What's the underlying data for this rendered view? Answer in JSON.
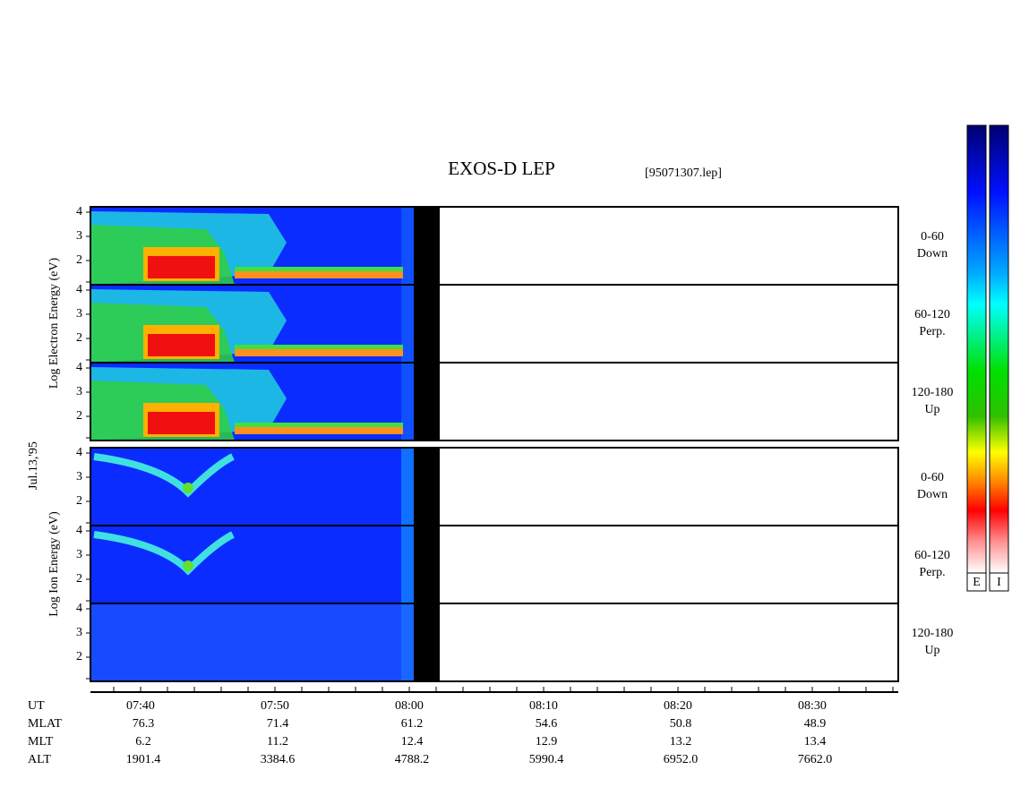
{
  "header": {
    "title": "EXOS-D LEP",
    "file": "[95071307.lep]",
    "date": "Jul.13,'95"
  },
  "groups": [
    {
      "ylabel": "Log Electron Energy (eV)",
      "panels": [
        {
          "angle": "0-60",
          "direction": "Down"
        },
        {
          "angle": "60-120",
          "direction": "Perp."
        },
        {
          "angle": "120-180",
          "direction": "Up"
        }
      ]
    },
    {
      "ylabel": "Log Ion Energy (eV)",
      "panels": [
        {
          "angle": "0-60",
          "direction": "Down"
        },
        {
          "angle": "60-120",
          "direction": "Perp."
        },
        {
          "angle": "120-180",
          "direction": "Up"
        }
      ]
    }
  ],
  "yticks": [
    "4",
    "3",
    "2"
  ],
  "table": {
    "rows": [
      {
        "label": "UT",
        "values": [
          "07:40",
          "07:50",
          "08:00",
          "08:10",
          "08:20",
          "08:30"
        ]
      },
      {
        "label": "MLAT",
        "values": [
          "76.3",
          "71.4",
          "61.2",
          "54.6",
          "50.8",
          "48.9"
        ]
      },
      {
        "label": "MLT",
        "values": [
          "6.2",
          "11.2",
          "12.4",
          "12.9",
          "13.2",
          "13.4"
        ]
      },
      {
        "label": "ALT",
        "values": [
          "1901.4",
          "3384.6",
          "4788.2",
          "5990.4",
          "6952.0",
          "7662.0"
        ]
      }
    ]
  },
  "colorbars": [
    "E",
    "I"
  ]
}
